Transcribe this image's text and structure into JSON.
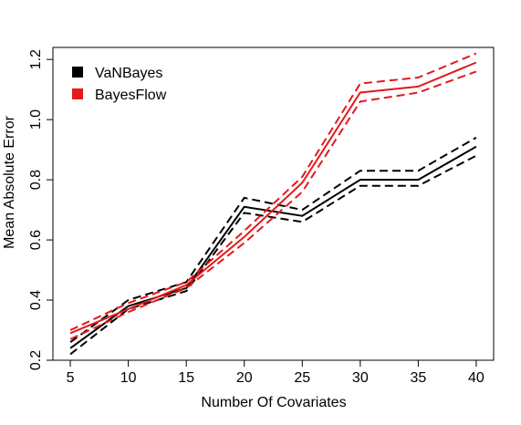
{
  "chart_data": {
    "type": "line",
    "title": "",
    "xlabel": "Number Of Covariates",
    "ylabel": "Mean Absolute Error",
    "x": [
      5,
      10,
      15,
      20,
      25,
      30,
      35,
      40
    ],
    "xlim": [
      3.5,
      41.5
    ],
    "ylim": [
      0.2,
      1.24
    ],
    "xticks": [
      5,
      10,
      15,
      20,
      25,
      30,
      35,
      40
    ],
    "xtick_labels": [
      "5",
      "10",
      "15",
      "20",
      "25",
      "30",
      "35",
      "40"
    ],
    "yticks": [
      0.2,
      0.4,
      0.6,
      0.8,
      1.0,
      1.2
    ],
    "ytick_labels": [
      "0.2",
      "0.4",
      "0.6",
      "0.8",
      "1.0",
      "1.2"
    ],
    "grid": false,
    "legend_position": "top-left",
    "series": [
      {
        "name": "VaNBayes",
        "color": "#000000",
        "values": [
          0.24,
          0.38,
          0.44,
          0.71,
          0.68,
          0.8,
          0.8,
          0.91
        ],
        "upper": [
          0.26,
          0.4,
          0.46,
          0.74,
          0.7,
          0.83,
          0.83,
          0.94
        ],
        "lower": [
          0.22,
          0.37,
          0.43,
          0.69,
          0.66,
          0.78,
          0.78,
          0.88
        ]
      },
      {
        "name": "BayesFlow",
        "color": "#e31a1c",
        "values": [
          0.29,
          0.37,
          0.45,
          0.61,
          0.79,
          1.09,
          1.11,
          1.19
        ],
        "upper": [
          0.3,
          0.39,
          0.46,
          0.63,
          0.81,
          1.12,
          1.14,
          1.22
        ],
        "lower": [
          0.27,
          0.36,
          0.44,
          0.59,
          0.76,
          1.06,
          1.09,
          1.16
        ]
      }
    ]
  }
}
